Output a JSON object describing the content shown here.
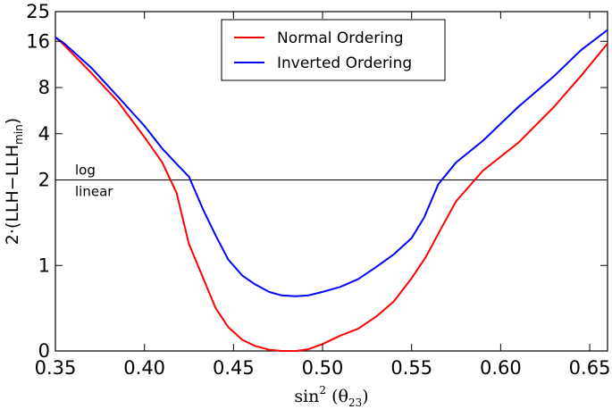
{
  "chart_data": {
    "type": "line",
    "xlabel": {
      "prefix": "sin",
      "sup": "2",
      "open": " (θ",
      "sub": "23",
      "close": ")"
    },
    "ylabel": {
      "prefix": "2·(LLH−LLH",
      "sub": "min",
      "close": ")"
    },
    "xlim": [
      0.35,
      0.66
    ],
    "x_ticks": [
      0.35,
      0.4,
      0.45,
      0.5,
      0.55,
      0.6,
      0.65
    ],
    "x_tick_labels": [
      "0.35",
      "0.40",
      "0.45",
      "0.50",
      "0.55",
      "0.60",
      "0.65"
    ],
    "y_scale": "linear below 2, log from 2 to 25",
    "y_ticks": [
      0,
      1,
      2,
      4,
      8,
      16,
      25
    ],
    "y_tick_labels": [
      "0",
      "1",
      "2",
      "4",
      "8",
      "16",
      "25"
    ],
    "grid": false,
    "scale_break": {
      "at": 2,
      "above_label": "log",
      "below_label": "linear"
    },
    "legend": {
      "placement": "top-center"
    },
    "series": [
      {
        "name": "Normal Ordering",
        "color": "#ff0000",
        "x": [
          0.35,
          0.354,
          0.37,
          0.385,
          0.4,
          0.41,
          0.418,
          0.425,
          0.433,
          0.44,
          0.447,
          0.455,
          0.462,
          0.47,
          0.477,
          0.485,
          0.492,
          0.5,
          0.51,
          0.52,
          0.53,
          0.54,
          0.55,
          0.558,
          0.567,
          0.575,
          0.59,
          0.61,
          0.63,
          0.645,
          0.66
        ],
        "y": [
          17.0,
          15.5,
          10.0,
          6.5,
          3.8,
          2.6,
          1.85,
          1.25,
          0.85,
          0.5,
          0.28,
          0.13,
          0.06,
          0.015,
          0.0,
          0.0,
          0.02,
          0.08,
          0.18,
          0.26,
          0.4,
          0.58,
          0.85,
          1.1,
          1.45,
          1.75,
          2.3,
          3.5,
          6.0,
          9.5,
          15.5
        ]
      },
      {
        "name": "Inverted Ordering",
        "color": "#0000ff",
        "x": [
          0.35,
          0.355,
          0.37,
          0.385,
          0.4,
          0.41,
          0.418,
          0.425,
          0.433,
          0.44,
          0.447,
          0.455,
          0.462,
          0.47,
          0.477,
          0.485,
          0.492,
          0.5,
          0.51,
          0.52,
          0.53,
          0.54,
          0.55,
          0.557,
          0.565,
          0.575,
          0.59,
          0.61,
          0.63,
          0.645,
          0.66
        ],
        "y": [
          17.0,
          15.5,
          10.8,
          7.0,
          4.5,
          3.2,
          2.55,
          2.1,
          1.65,
          1.35,
          1.07,
          0.88,
          0.78,
          0.69,
          0.65,
          0.64,
          0.65,
          0.69,
          0.75,
          0.84,
          0.98,
          1.13,
          1.32,
          1.56,
          1.95,
          2.6,
          3.6,
          6.0,
          9.5,
          14.0,
          19.0
        ]
      }
    ]
  }
}
